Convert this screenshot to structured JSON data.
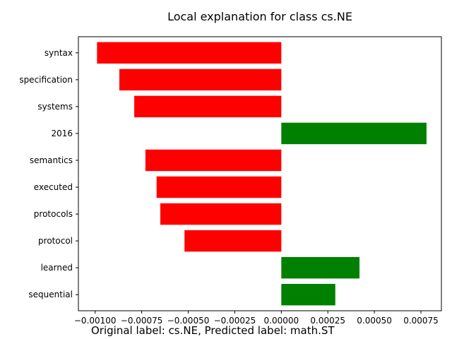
{
  "chart_data": {
    "type": "bar",
    "orientation": "horizontal",
    "title": "Local explanation for class cs.NE",
    "xlabel": "",
    "ylabel": "",
    "categories": [
      "syntax",
      "specification",
      "systems",
      "2016",
      "semantics",
      "executed",
      "protocols",
      "protocol",
      "learned",
      "sequential"
    ],
    "values": [
      -0.00099,
      -0.00087,
      -0.00079,
      0.00078,
      -0.00073,
      -0.00067,
      -0.00065,
      -0.00052,
      0.00042,
      0.00029
    ],
    "xlim": [
      -0.00109,
      0.00086
    ],
    "xticks": [
      -0.001,
      -0.00075,
      -0.0005,
      -0.00025,
      0.0,
      0.00025,
      0.0005,
      0.00075
    ],
    "xtick_labels": [
      "−0.00100",
      "−0.00075",
      "−0.00050",
      "−0.00025",
      "0.00000",
      "0.00025",
      "0.00050",
      "0.00075"
    ],
    "grid": false,
    "legend": "none",
    "colors": {
      "positive": "#008000",
      "negative": "#ff0000"
    }
  },
  "footer": {
    "text": "Original label: cs.NE, Predicted label: math.ST"
  }
}
